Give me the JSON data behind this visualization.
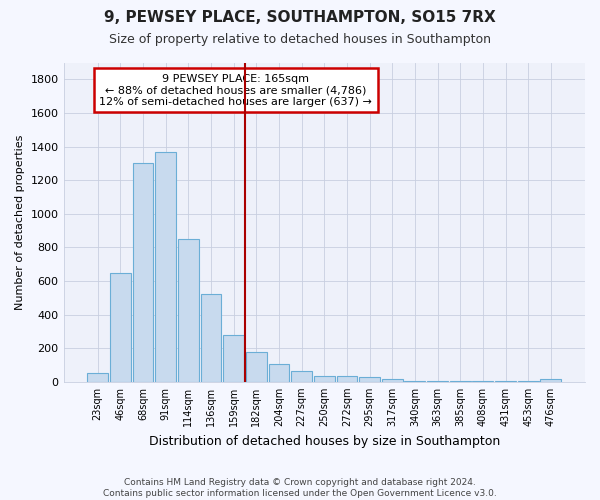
{
  "title1": "9, PEWSEY PLACE, SOUTHAMPTON, SO15 7RX",
  "title2": "Size of property relative to detached houses in Southampton",
  "xlabel": "Distribution of detached houses by size in Southampton",
  "ylabel": "Number of detached properties",
  "categories": [
    "23sqm",
    "46sqm",
    "68sqm",
    "91sqm",
    "114sqm",
    "136sqm",
    "159sqm",
    "182sqm",
    "204sqm",
    "227sqm",
    "250sqm",
    "272sqm",
    "295sqm",
    "317sqm",
    "340sqm",
    "363sqm",
    "385sqm",
    "408sqm",
    "431sqm",
    "453sqm",
    "476sqm"
  ],
  "values": [
    55,
    645,
    1300,
    1370,
    848,
    520,
    280,
    175,
    108,
    65,
    35,
    35,
    27,
    15,
    4,
    4,
    4,
    4,
    4,
    4,
    15
  ],
  "bar_color": "#c8daee",
  "bar_edge_color": "#6baed6",
  "vline_x": 7,
  "vline_color": "#aa0000",
  "annotation_line1": "9 PEWSEY PLACE: 165sqm",
  "annotation_line2": "← 88% of detached houses are smaller (4,786)",
  "annotation_line3": "12% of semi-detached houses are larger (637) →",
  "annotation_box_color": "#cc0000",
  "ylim": [
    0,
    1900
  ],
  "yticks": [
    0,
    200,
    400,
    600,
    800,
    1000,
    1200,
    1400,
    1600,
    1800
  ],
  "footer1": "Contains HM Land Registry data © Crown copyright and database right 2024.",
  "footer2": "Contains public sector information licensed under the Open Government Licence v3.0.",
  "bg_color": "#f5f7ff",
  "plot_bg_color": "#eef1fa",
  "grid_color": "#c8cfe0"
}
